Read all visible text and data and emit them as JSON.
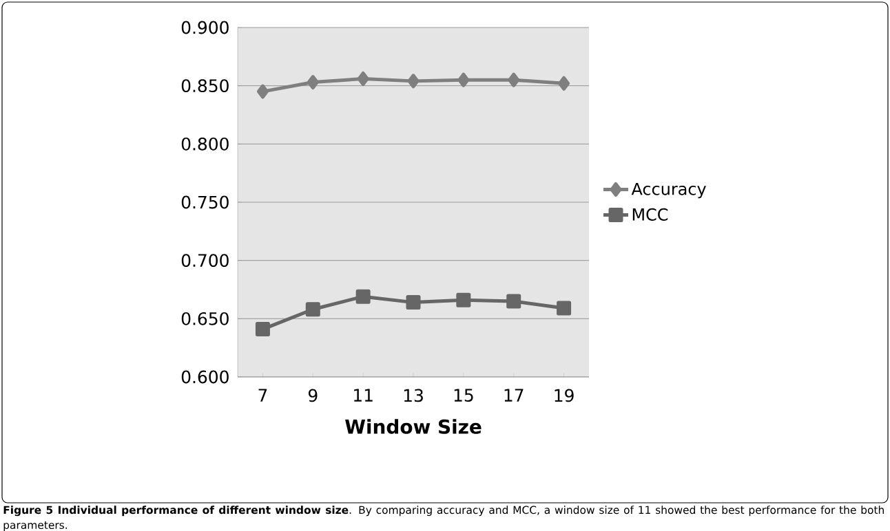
{
  "chart_data": {
    "type": "line",
    "xlabel": "Window Size",
    "categories": [
      "7",
      "9",
      "11",
      "13",
      "15",
      "17",
      "19"
    ],
    "series": [
      {
        "name": "Accuracy",
        "color": "#7f7f7f",
        "marker": "diamond",
        "values": [
          0.845,
          0.853,
          0.856,
          0.854,
          0.855,
          0.855,
          0.852
        ]
      },
      {
        "name": "MCC",
        "color": "#666666",
        "marker": "square",
        "values": [
          0.641,
          0.658,
          0.669,
          0.664,
          0.666,
          0.665,
          0.659
        ]
      }
    ],
    "ylim": [
      0.6,
      0.9
    ],
    "yticks": [
      {
        "value": 0.6,
        "label": "0.600"
      },
      {
        "value": 0.65,
        "label": "0.650"
      },
      {
        "value": 0.7,
        "label": "0.700"
      },
      {
        "value": 0.75,
        "label": "0.750"
      },
      {
        "value": 0.8,
        "label": "0.800"
      },
      {
        "value": 0.85,
        "label": "0.850"
      },
      {
        "value": 0.9,
        "label": "0.900"
      }
    ],
    "grid": "y",
    "legend": "right",
    "line_style": "solid",
    "annotations": [
      "**Figure 5 Individual performance of different window size**. By comparing accuracy and MCC, a window size of 11 showed the best performance for the both parameters."
    ]
  }
}
